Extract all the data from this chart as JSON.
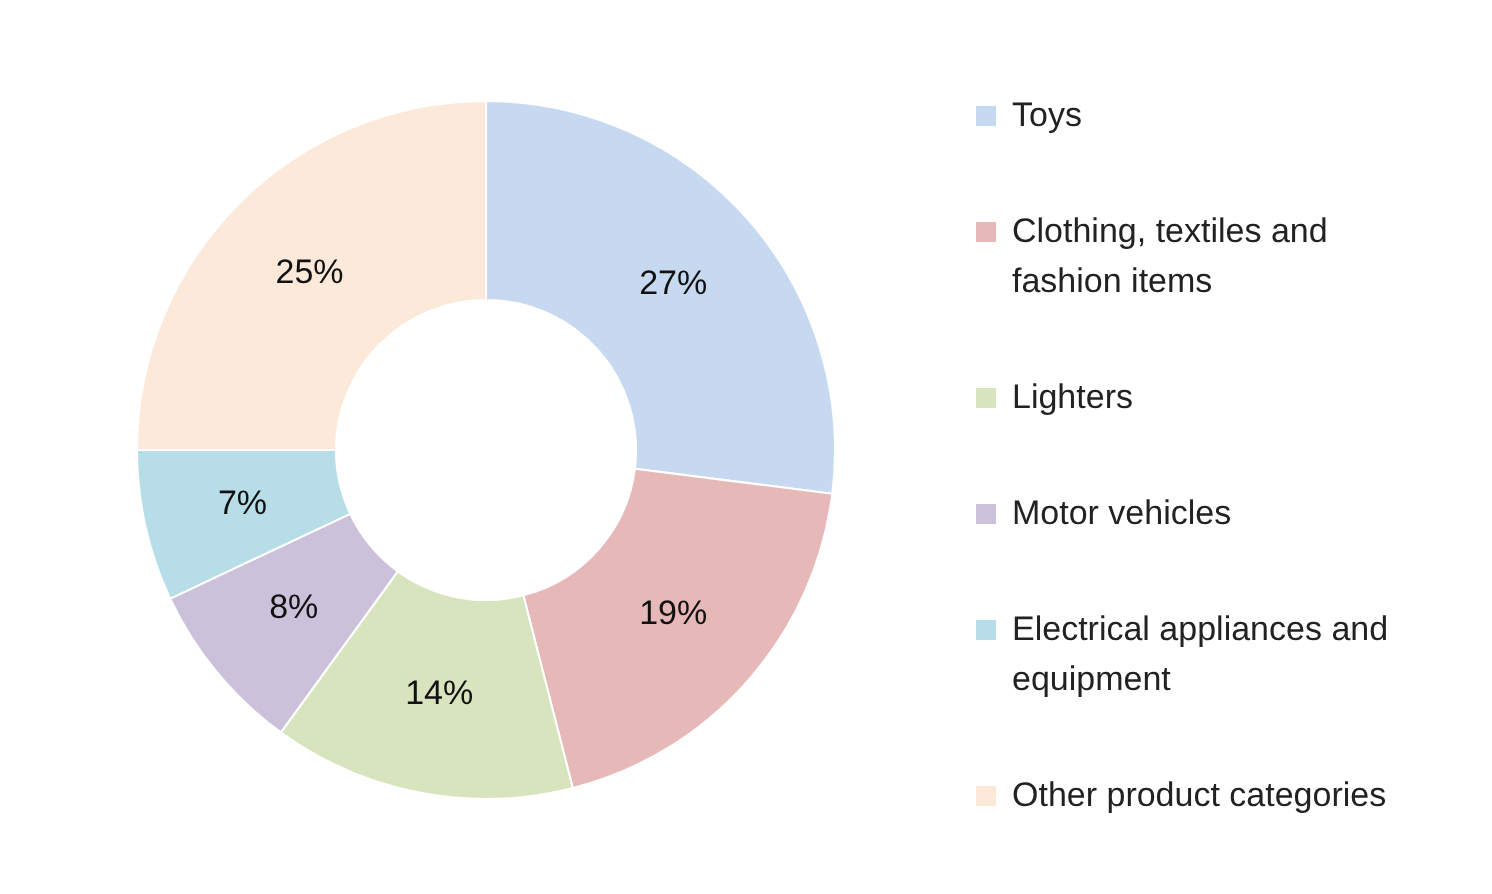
{
  "chart_data": {
    "type": "donut",
    "categories": [
      "Toys",
      "Clothing, textiles and fashion items",
      "Lighters",
      "Motor vehicles",
      "Electrical appliances and equipment",
      "Other product categories"
    ],
    "values": [
      27,
      19,
      14,
      8,
      7,
      25
    ],
    "colors": [
      "#c6d9f1",
      "#e6b9b8",
      "#d7e4bd",
      "#ccc1da",
      "#b7dee8",
      "#fde9d9"
    ],
    "value_labels": [
      "27%",
      "19%",
      "14%",
      "8%",
      "7%",
      "25%"
    ],
    "legend": "right"
  }
}
